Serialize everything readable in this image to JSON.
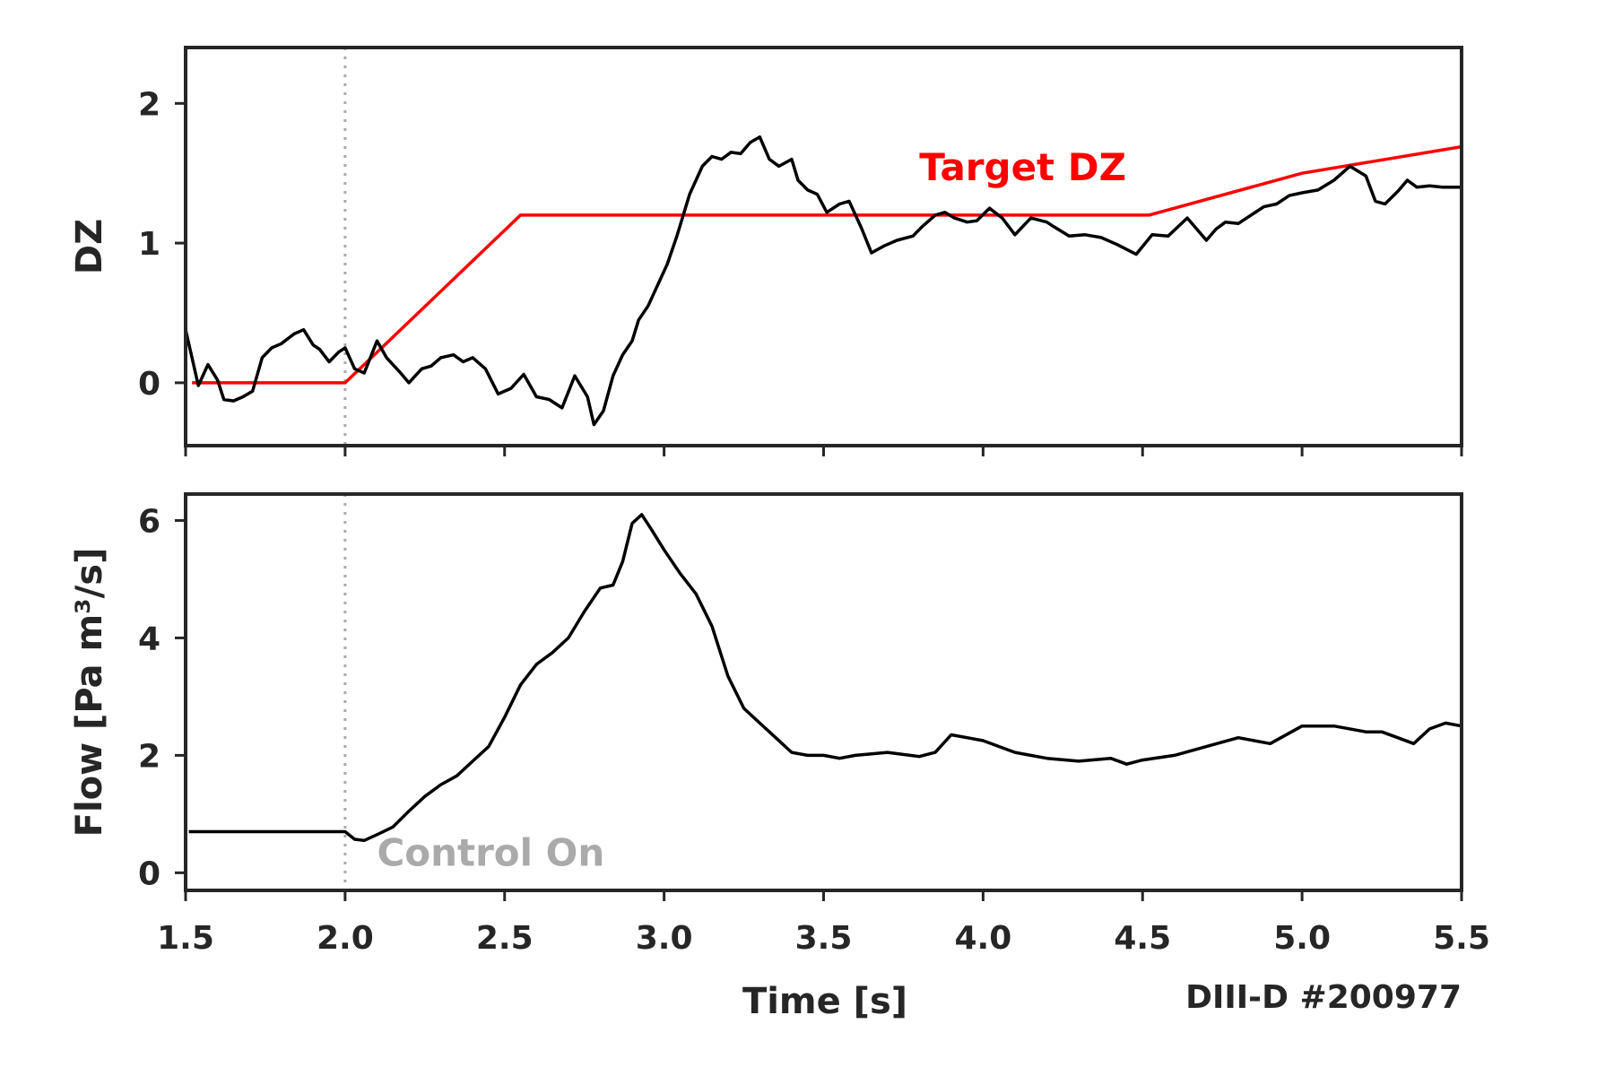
{
  "figure": {
    "credit": "DIII-D #200977",
    "xlabel": "Time [s]"
  },
  "colors": {
    "measured": "#000000",
    "target": "#ff0000",
    "marker": "#aaaaaa",
    "axes": "#262626"
  },
  "chart_data": [
    {
      "type": "line",
      "ylabel": "DZ",
      "xlim": [
        1.5,
        5.5
      ],
      "ylim": [
        -0.45,
        2.4
      ],
      "xticks": [
        1.5,
        2.0,
        2.5,
        3.0,
        3.5,
        4.0,
        4.5,
        5.0,
        5.5
      ],
      "xtick_labels": [
        "",
        "",
        "",
        "",
        "",
        "",
        "",
        "",
        ""
      ],
      "yticks": [
        0,
        1,
        2
      ],
      "ytick_labels": [
        "0",
        "1",
        "2"
      ],
      "vline": 2.0,
      "annotation": {
        "text": "Target DZ",
        "x": 3.8,
        "y": 1.45,
        "color": "#ff0000"
      },
      "series": [
        {
          "label": "Target DZ",
          "color": "#ff0000",
          "x": [
            1.52,
            2.0,
            2.55,
            4.52,
            5.0,
            5.5
          ],
          "y": [
            0.0,
            0.0,
            1.2,
            1.2,
            1.5,
            1.69
          ]
        },
        {
          "color": "#000000",
          "x": [
            1.5,
            1.54,
            1.57,
            1.6,
            1.62,
            1.65,
            1.68,
            1.71,
            1.74,
            1.77,
            1.8,
            1.84,
            1.87,
            1.9,
            1.92,
            1.95,
            1.98,
            2.0,
            2.03,
            2.06,
            2.1,
            2.13,
            2.17,
            2.2,
            2.24,
            2.27,
            2.3,
            2.34,
            2.37,
            2.4,
            2.44,
            2.48,
            2.52,
            2.56,
            2.6,
            2.64,
            2.68,
            2.72,
            2.76,
            2.78,
            2.81,
            2.84,
            2.87,
            2.9,
            2.92,
            2.95,
            2.98,
            3.01,
            3.04,
            3.08,
            3.12,
            3.15,
            3.18,
            3.21,
            3.24,
            3.27,
            3.3,
            3.33,
            3.36,
            3.4,
            3.42,
            3.45,
            3.48,
            3.51,
            3.55,
            3.58,
            3.62,
            3.65,
            3.69,
            3.73,
            3.78,
            3.81,
            3.85,
            3.88,
            3.91,
            3.95,
            3.98,
            4.02,
            4.06,
            4.1,
            4.15,
            4.2,
            4.22,
            4.27,
            4.32,
            4.37,
            4.42,
            4.48,
            4.53,
            4.58,
            4.64,
            4.7,
            4.73,
            4.76,
            4.8,
            4.84,
            4.88,
            4.92,
            4.96,
            5.0,
            5.05,
            5.1,
            5.15,
            5.2,
            5.23,
            5.26,
            5.3,
            5.33,
            5.36,
            5.4,
            5.44,
            5.47,
            5.5
          ],
          "y": [
            0.38,
            -0.02,
            0.13,
            0.02,
            -0.12,
            -0.13,
            -0.1,
            -0.06,
            0.18,
            0.25,
            0.28,
            0.35,
            0.38,
            0.27,
            0.24,
            0.15,
            0.22,
            0.25,
            0.1,
            0.07,
            0.3,
            0.18,
            0.08,
            0.0,
            0.1,
            0.12,
            0.18,
            0.2,
            0.15,
            0.18,
            0.1,
            -0.08,
            -0.04,
            0.06,
            -0.1,
            -0.12,
            -0.18,
            0.05,
            -0.1,
            -0.3,
            -0.2,
            0.05,
            0.2,
            0.3,
            0.45,
            0.55,
            0.7,
            0.85,
            1.05,
            1.35,
            1.55,
            1.62,
            1.6,
            1.65,
            1.64,
            1.72,
            1.76,
            1.6,
            1.55,
            1.6,
            1.45,
            1.38,
            1.35,
            1.22,
            1.28,
            1.3,
            1.1,
            0.93,
            0.98,
            1.02,
            1.05,
            1.12,
            1.2,
            1.22,
            1.18,
            1.15,
            1.16,
            1.25,
            1.18,
            1.06,
            1.18,
            1.15,
            1.12,
            1.05,
            1.06,
            1.04,
            0.99,
            0.92,
            1.06,
            1.05,
            1.18,
            1.02,
            1.1,
            1.15,
            1.14,
            1.2,
            1.26,
            1.28,
            1.34,
            1.36,
            1.38,
            1.45,
            1.55,
            1.48,
            1.3,
            1.28,
            1.37,
            1.45,
            1.4,
            1.41,
            1.4,
            1.4,
            1.4
          ]
        }
      ]
    },
    {
      "type": "line",
      "ylabel": "Flow [Pa m³/s]",
      "xlim": [
        1.5,
        5.5
      ],
      "ylim": [
        -0.3,
        6.45
      ],
      "xticks": [
        1.5,
        2.0,
        2.5,
        3.0,
        3.5,
        4.0,
        4.5,
        5.0,
        5.5
      ],
      "xtick_labels": [
        "1.5",
        "2.0",
        "2.5",
        "3.0",
        "3.5",
        "4.0",
        "4.5",
        "5.0",
        "5.5"
      ],
      "yticks": [
        0,
        2,
        4,
        6
      ],
      "ytick_labels": [
        "0",
        "2",
        "4",
        "6"
      ],
      "vline": 2.0,
      "annotation": {
        "text": "Control On",
        "x": 2.1,
        "y": 0.12,
        "color": "#aaaaaa"
      },
      "series": [
        {
          "color": "#000000",
          "x": [
            1.51,
            2.0,
            2.03,
            2.06,
            2.1,
            2.15,
            2.2,
            2.25,
            2.3,
            2.35,
            2.4,
            2.45,
            2.5,
            2.55,
            2.6,
            2.65,
            2.7,
            2.75,
            2.8,
            2.84,
            2.87,
            2.9,
            2.93,
            2.96,
            3.0,
            3.05,
            3.1,
            3.15,
            3.2,
            3.25,
            3.3,
            3.35,
            3.4,
            3.45,
            3.5,
            3.55,
            3.6,
            3.7,
            3.8,
            3.85,
            3.9,
            3.95,
            4.0,
            4.1,
            4.2,
            4.3,
            4.4,
            4.45,
            4.5,
            4.6,
            4.7,
            4.8,
            4.9,
            5.0,
            5.1,
            5.2,
            5.25,
            5.3,
            5.35,
            5.4,
            5.45,
            5.5
          ],
          "y": [
            0.7,
            0.7,
            0.57,
            0.55,
            0.65,
            0.78,
            1.05,
            1.3,
            1.5,
            1.65,
            1.9,
            2.15,
            2.65,
            3.2,
            3.55,
            3.75,
            4.0,
            4.45,
            4.85,
            4.9,
            5.3,
            5.95,
            6.1,
            5.85,
            5.5,
            5.1,
            4.75,
            4.2,
            3.35,
            2.8,
            2.55,
            2.3,
            2.05,
            2.0,
            2.0,
            1.95,
            2.0,
            2.05,
            1.98,
            2.05,
            2.35,
            2.3,
            2.25,
            2.05,
            1.95,
            1.9,
            1.95,
            1.85,
            1.92,
            2.0,
            2.15,
            2.3,
            2.2,
            2.5,
            2.5,
            2.4,
            2.4,
            2.3,
            2.2,
            2.45,
            2.55,
            2.5
          ]
        }
      ]
    }
  ]
}
